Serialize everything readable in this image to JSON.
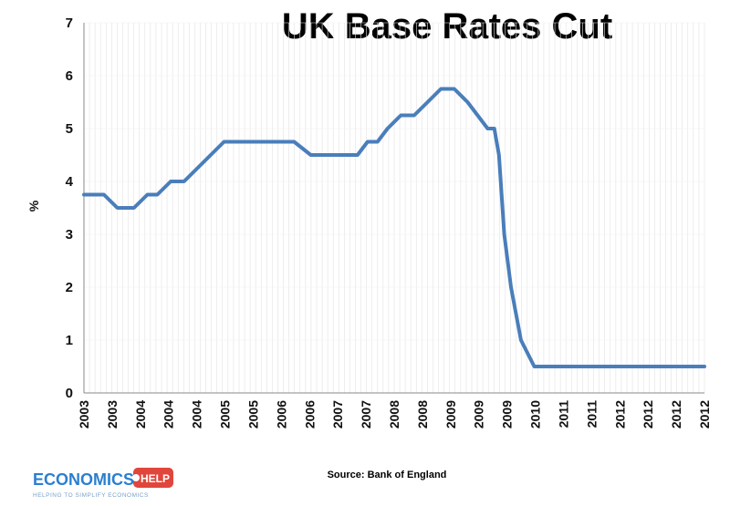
{
  "chart_data": {
    "type": "line",
    "title": "UK Base Rates Cut",
    "ylabel": "%",
    "xlabel": "",
    "ylim": [
      0,
      7
    ],
    "yticks": [
      0,
      1,
      2,
      3,
      4,
      5,
      6,
      7
    ],
    "xtick_labels": [
      "2003",
      "2003",
      "2004",
      "2004",
      "2004",
      "2005",
      "2005",
      "2006",
      "2006",
      "2007",
      "2007",
      "2008",
      "2008",
      "2009",
      "2009",
      "2009",
      "2010",
      "2011",
      "2011",
      "2012",
      "2012",
      "2012",
      "2012"
    ],
    "grid": "vertical",
    "legend": "none",
    "line_color": "#4a7ebb",
    "x": [
      2003.0,
      2003.3,
      2003.5,
      2003.75,
      2003.95,
      2004.1,
      2004.3,
      2004.5,
      2004.7,
      2004.9,
      2005.1,
      2005.3,
      2005.55,
      2005.75,
      2005.95,
      2006.15,
      2006.4,
      2006.65,
      2006.9,
      2007.1,
      2007.25,
      2007.4,
      2007.55,
      2007.75,
      2007.95,
      2008.15,
      2008.35,
      2008.55,
      2008.75,
      2008.9,
      2009.05,
      2009.15,
      2009.22,
      2009.3,
      2009.4,
      2009.55,
      2009.75,
      2009.9,
      2010.2,
      2010.6,
      2011.0,
      2011.5,
      2012.0,
      2012.3
    ],
    "y": [
      3.75,
      3.75,
      3.5,
      3.5,
      3.75,
      3.75,
      4.0,
      4.0,
      4.25,
      4.5,
      4.75,
      4.75,
      4.75,
      4.75,
      4.75,
      4.75,
      4.5,
      4.5,
      4.5,
      4.5,
      4.75,
      4.75,
      5.0,
      5.25,
      5.25,
      5.5,
      5.75,
      5.75,
      5.5,
      5.25,
      5.0,
      5.0,
      4.5,
      3.0,
      2.0,
      1.0,
      0.5,
      0.5,
      0.5,
      0.5,
      0.5,
      0.5,
      0.5,
      0.5
    ],
    "source": "Source: Bank of England"
  },
  "logo": {
    "main": "ECONOMICS",
    "badge": "HELP",
    "tagline": "HELPING TO SIMPLIFY ECONOMICS",
    "main_color": "#2b7fd0",
    "badge_color": "#e0463b"
  }
}
